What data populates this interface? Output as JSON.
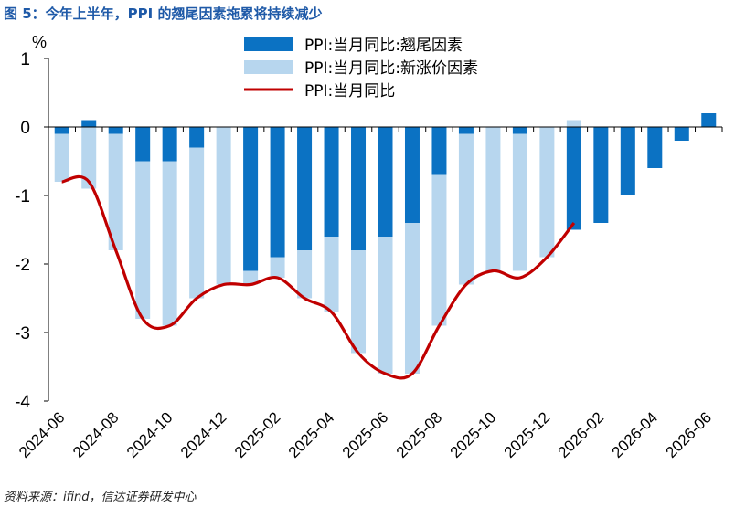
{
  "figure_title": "图 5：今年上半年，PPI 的翘尾因素拖累将持续减少",
  "source_note": "资料来源：ifind，信达证券研发中心",
  "colors": {
    "carryover": "#0b72c3",
    "new_factor": "#b7d6ee",
    "ppi_line": "#c00000",
    "axis": "#000000"
  },
  "chart_data": {
    "type": "bar",
    "stacked": true,
    "unit": "%",
    "categories": [
      "2024-06",
      "2024-07",
      "2024-08",
      "2024-09",
      "2024-10",
      "2024-11",
      "2024-12",
      "2025-01",
      "2025-02",
      "2025-03",
      "2025-04",
      "2025-05",
      "2025-06",
      "2025-07",
      "2025-08",
      "2025-09",
      "2025-10",
      "2025-11",
      "2025-12",
      "2026-01",
      "2026-02",
      "2026-03",
      "2026-04",
      "2026-05",
      "2026-06"
    ],
    "x_tick_labels": [
      "2024-06",
      "2024-08",
      "2024-10",
      "2024-12",
      "2025-02",
      "2025-04",
      "2025-06",
      "2025-08",
      "2025-10",
      "2025-12",
      "2026-02",
      "2026-04",
      "2026-06"
    ],
    "ylim": [
      -4,
      1
    ],
    "yticks": [
      "1",
      "0",
      "-1",
      "-2",
      "-3",
      "-4"
    ],
    "ytick_values": [
      1,
      0,
      -1,
      -2,
      -3,
      -4
    ],
    "series": [
      {
        "name": "PPI:当月同比:翘尾因素",
        "kind": "bar",
        "values": [
          -0.1,
          0.1,
          -0.1,
          -0.5,
          -0.5,
          -0.3,
          0.0,
          -2.1,
          -1.9,
          -1.8,
          -1.6,
          -1.8,
          -1.6,
          -1.4,
          -0.7,
          -0.1,
          0.0,
          -0.1,
          0.0,
          -1.5,
          -1.4,
          -1.0,
          -0.6,
          -0.2,
          0.2
        ]
      },
      {
        "name": "PPI:当月同比:新涨价因素",
        "kind": "bar",
        "values": [
          -0.7,
          -0.9,
          -1.7,
          -2.3,
          -2.4,
          -2.2,
          -2.3,
          -0.2,
          -0.3,
          -0.7,
          -1.1,
          -1.5,
          -2.0,
          -2.2,
          -2.2,
          -2.2,
          -2.1,
          -2.0,
          -1.9,
          0.1,
          null,
          null,
          null,
          null,
          null
        ]
      },
      {
        "name": "PPI:当月同比",
        "kind": "line",
        "values": [
          -0.8,
          -0.8,
          -1.8,
          -2.8,
          -2.9,
          -2.5,
          -2.3,
          -2.3,
          -2.2,
          -2.5,
          -2.7,
          -3.3,
          -3.6,
          -3.6,
          -2.9,
          -2.3,
          -2.1,
          -2.2,
          -1.9,
          -1.4,
          null,
          null,
          null,
          null,
          null
        ]
      }
    ]
  }
}
